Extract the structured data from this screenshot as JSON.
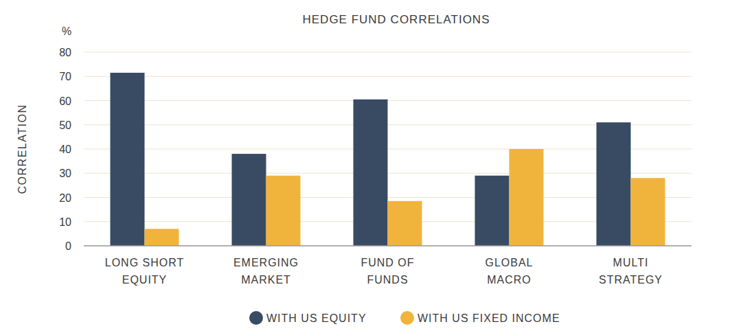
{
  "chart_data": {
    "type": "bar",
    "title": "HEDGE FUND CORRELATIONS",
    "y_label": "CORRELATION",
    "y_unit": "%",
    "categories": [
      "LONG SHORT EQUITY",
      "EMERGING MARKET",
      "FUND OF FUNDS",
      "GLOBAL MACRO",
      "MULTI STRATEGY"
    ],
    "series": [
      {
        "name": "WITH US EQUITY",
        "color": "#394b63",
        "values": [
          71.5,
          38,
          60.5,
          29,
          51
        ]
      },
      {
        "name": "WITH US FIXED INCOME",
        "color": "#f0b43c",
        "values": [
          7,
          29,
          18.5,
          40,
          28
        ]
      }
    ],
    "ylim": [
      0,
      80
    ],
    "yticks": [
      0,
      10,
      20,
      30,
      40,
      50,
      60,
      70,
      80
    ],
    "grid": true,
    "legend": "bottom"
  }
}
